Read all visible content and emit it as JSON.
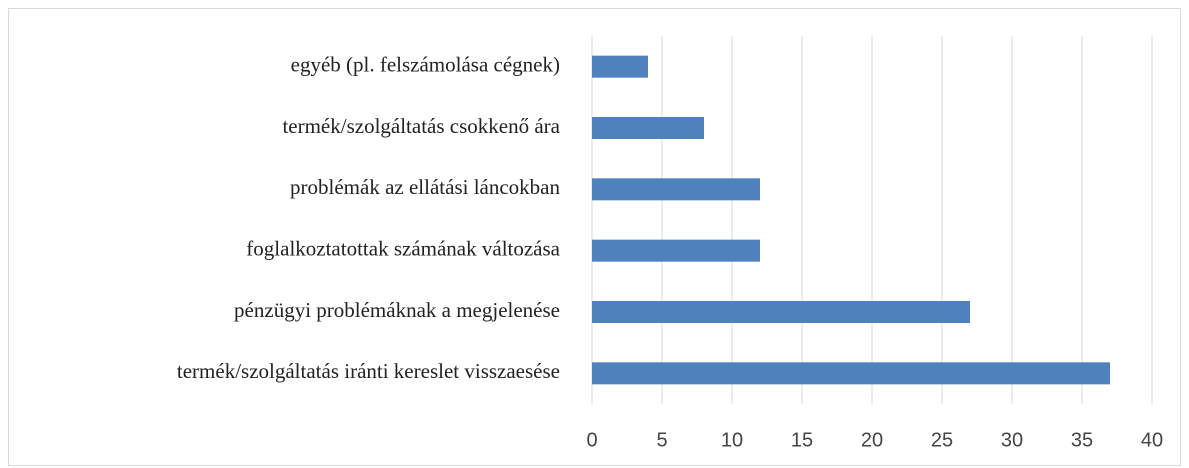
{
  "chart_data": {
    "type": "barh",
    "categories": [
      "egyéb (pl. felszámolása cégnek)",
      "termék/szolgáltatás csokkenő ára",
      "problémák az ellátási láncokban",
      "foglalkoztatottak számának változása",
      "pénzügyi problémáknak a megjelenése",
      "termék/szolgáltatás iránti kereslet visszaesése"
    ],
    "values": [
      4,
      8,
      12,
      12,
      27,
      37
    ],
    "color": "#4f81bd",
    "xlim": [
      0,
      40
    ],
    "xticks": [
      0,
      5,
      10,
      15,
      20,
      25,
      30,
      35,
      40
    ],
    "grid": true
  }
}
